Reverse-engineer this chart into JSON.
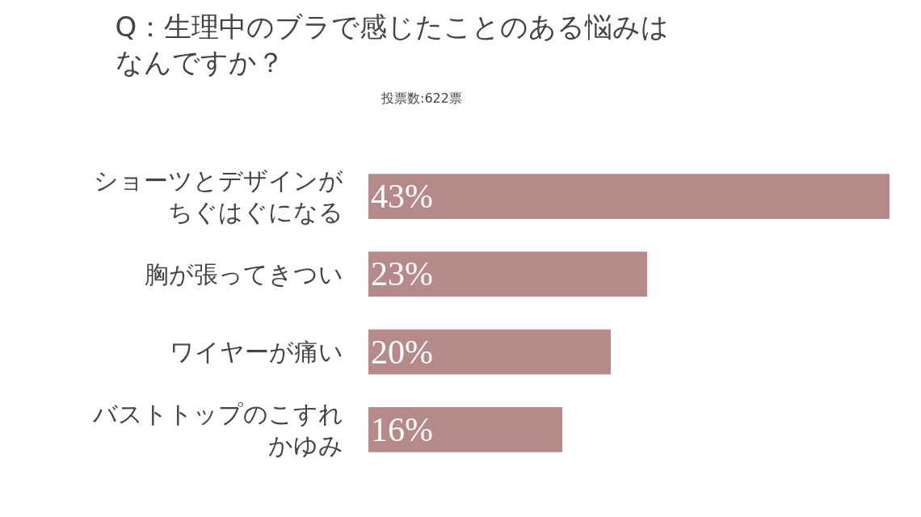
{
  "chart_data": {
    "type": "bar",
    "orientation": "horizontal",
    "title": "Q：生理中のブラで感じたことのある悩みはなんですか？",
    "subtitle": "投票数:622票",
    "categories": [
      "ショーツとデザインがちぐはぐになる",
      "胸が張ってきつい",
      "ワイヤーが痛い",
      "バストトップのこすれかゆみ"
    ],
    "values": [
      43,
      23,
      20,
      16
    ],
    "value_labels": [
      "43%",
      "23%",
      "20%",
      "16%"
    ],
    "color": "#b58a88",
    "xlim": [
      0,
      43
    ],
    "tick_labels": "y",
    "legend": false
  }
}
